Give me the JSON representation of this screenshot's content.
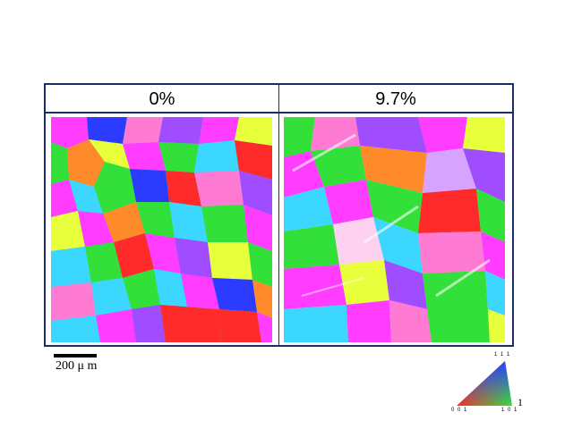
{
  "panels": {
    "left_label": "0%",
    "right_label": "9.7%"
  },
  "scale_bar": {
    "label": "200 μ m"
  },
  "legend": {
    "top_label": "1 1 1",
    "bottom_left_label": "0 0 1",
    "bottom_right_label": "1 0 1",
    "side_label": "1"
  },
  "colors": {
    "frame": "#1f2a6b",
    "red": "#ff2a2a",
    "green": "#33e03a",
    "blue": "#2b3cff",
    "magenta": "#ff3cff",
    "cyan": "#3cd7ff",
    "yellow": "#e8ff3c",
    "orange": "#ff8a2a",
    "violet": "#a04cff",
    "pink": "#ff7ad2"
  }
}
